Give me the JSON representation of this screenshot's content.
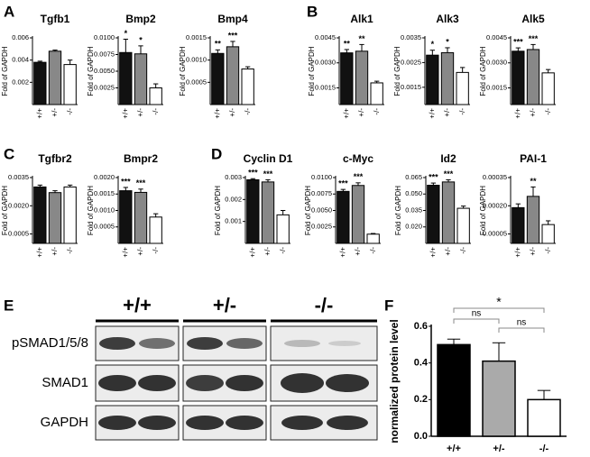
{
  "panel_labels": [
    "A",
    "B",
    "C",
    "D",
    "E",
    "F"
  ],
  "blot": {
    "genotypes": [
      "+/+",
      "+/-",
      "-/-"
    ],
    "rows": [
      "pSMAD1/5/8",
      "SMAD1",
      "GAPDH"
    ]
  },
  "chart_data": [
    {
      "type": "bar",
      "title": "Tgfb1",
      "y_label": "Fold of GAPDH",
      "categories": [
        "+/+",
        "+/-",
        "-/-"
      ],
      "colors": [
        "#111111",
        "#888888",
        "#ffffff"
      ],
      "values": [
        0.0038,
        0.0048,
        0.0036
      ],
      "errors": [
        0.0001,
        0.0001,
        0.0004
      ],
      "significance": [
        null,
        null,
        null
      ],
      "ylim": [
        0,
        0.006
      ],
      "yticks": [
        0.002,
        0.004,
        0.006
      ]
    },
    {
      "type": "bar",
      "title": "Bmp2",
      "y_label": "Fold of GAPDH",
      "categories": [
        "+/+",
        "+/-",
        "-/-"
      ],
      "colors": [
        "#111111",
        "#888888",
        "#ffffff"
      ],
      "values": [
        0.0078,
        0.0076,
        0.0025
      ],
      "errors": [
        0.002,
        0.0012,
        0.0006
      ],
      "significance": [
        "*",
        "*",
        null
      ],
      "ylim": [
        0,
        0.01
      ],
      "yticks": [
        0.0025,
        {
          "value": 0.005,
          "label": "0.0050"
        },
        0.0075,
        {
          "value": 0.01,
          "label": "0.0100"
        }
      ]
    },
    {
      "type": "bar",
      "title": "Bmp4",
      "y_label": "Fold of GAPDH",
      "categories": [
        "+/+",
        "+/-",
        "-/-"
      ],
      "colors": [
        "#111111",
        "#888888",
        "#ffffff"
      ],
      "values": [
        0.00115,
        0.0013,
        0.0008
      ],
      "errors": [
        8e-05,
        0.00012,
        5e-05
      ],
      "significance": [
        "**",
        "***",
        null
      ],
      "ylim": [
        0,
        0.0015
      ],
      "yticks": [
        0.0005,
        {
          "value": 0.001,
          "label": "0.0010"
        },
        0.0015
      ]
    },
    {
      "type": "bar",
      "title": "Alk1",
      "y_label": "Fold of GAPDH",
      "categories": [
        "+/+",
        "+/-",
        "-/-"
      ],
      "colors": [
        "#111111",
        "#888888",
        "#ffffff"
      ],
      "values": [
        0.0036,
        0.0037,
        0.0018
      ],
      "errors": [
        0.0002,
        0.0004,
        0.0001
      ],
      "significance": [
        "**",
        "**",
        null
      ],
      "ylim": [
        0.0005,
        0.0045
      ],
      "yticks": [
        0.0015,
        {
          "value": 0.003,
          "label": "0.0030"
        },
        0.0045
      ]
    },
    {
      "type": "bar",
      "title": "Alk3",
      "y_label": "Fold of GAPDH",
      "categories": [
        "+/+",
        "+/-",
        "-/-"
      ],
      "colors": [
        "#111111",
        "#888888",
        "#ffffff"
      ],
      "values": [
        0.0028,
        0.0029,
        0.0021
      ],
      "errors": [
        0.0002,
        0.0002,
        0.0002
      ],
      "significance": [
        "*",
        "*",
        null
      ],
      "ylim": [
        0.0008,
        0.0035
      ],
      "yticks": [
        0.0015,
        0.0025,
        0.0035
      ]
    },
    {
      "type": "bar",
      "title": "Alk5",
      "y_label": "Fold of GAPDH",
      "categories": [
        "+/+",
        "+/-",
        "-/-"
      ],
      "colors": [
        "#111111",
        "#888888",
        "#ffffff"
      ],
      "values": [
        0.0037,
        0.0038,
        0.0024
      ],
      "errors": [
        0.0002,
        0.0003,
        0.0002
      ],
      "significance": [
        "***",
        "***",
        null
      ],
      "ylim": [
        0.0005,
        0.0045
      ],
      "yticks": [
        0.0015,
        {
          "value": 0.003,
          "label": "0.0030"
        },
        0.0045
      ]
    },
    {
      "type": "bar",
      "title": "Tgfbr2",
      "y_label": "Fold of GAPDH",
      "categories": [
        "+/+",
        "+/-",
        "-/-"
      ],
      "colors": [
        "#111111",
        "#888888",
        "#ffffff"
      ],
      "values": [
        0.003,
        0.0027,
        0.003
      ],
      "errors": [
        0.0001,
        0.0001,
        0.0001
      ],
      "significance": [
        null,
        null,
        null
      ],
      "ylim": [
        0,
        0.0035
      ],
      "yticks": [
        0.0005,
        {
          "value": 0.002,
          "label": "0.0020"
        },
        0.0035
      ]
    },
    {
      "type": "bar",
      "title": "Bmpr2",
      "y_label": "Fold of GAPDH",
      "categories": [
        "+/+",
        "+/-",
        "-/-"
      ],
      "colors": [
        "#111111",
        "#888888",
        "#ffffff"
      ],
      "values": [
        0.0016,
        0.00155,
        0.0008
      ],
      "errors": [
        0.0001,
        0.0001,
        0.0001
      ],
      "significance": [
        "***",
        "***",
        null
      ],
      "ylim": [
        0,
        0.002
      ],
      "yticks": [
        0.0005,
        {
          "value": 0.001,
          "label": "0.0010"
        },
        0.0015,
        {
          "value": 0.002,
          "label": "0.0020"
        }
      ]
    },
    {
      "type": "bar",
      "title": "Cyclin D1",
      "y_label": "Fold of GAPDH",
      "categories": [
        "+/+",
        "+/-",
        "-/-"
      ],
      "colors": [
        "#111111",
        "#888888",
        "#ffffff"
      ],
      "values": [
        0.0029,
        0.0028,
        0.0013
      ],
      "errors": [
        5e-05,
        0.0001,
        0.0002
      ],
      "significance": [
        "***",
        "***",
        null
      ],
      "ylim": [
        0,
        0.003
      ],
      "yticks": [
        0.001,
        0.002,
        0.003
      ]
    },
    {
      "type": "bar",
      "title": "c-Myc",
      "y_label": "Fold of GAPDH",
      "categories": [
        "+/+",
        "+/-",
        "-/-"
      ],
      "colors": [
        "#111111",
        "#888888",
        "#ffffff"
      ],
      "values": [
        0.0079,
        0.0088,
        0.0014
      ],
      "errors": [
        0.0003,
        0.0004,
        0.0001
      ],
      "significance": [
        "***",
        "***",
        null
      ],
      "ylim": [
        0,
        0.01
      ],
      "yticks": [
        0.0025,
        {
          "value": 0.005,
          "label": "0.0050"
        },
        0.0075,
        {
          "value": 0.01,
          "label": "0.0100"
        }
      ]
    },
    {
      "type": "bar",
      "title": "Id2",
      "y_label": "Fold of GAPDH",
      "categories": [
        "+/+",
        "+/-",
        "-/-"
      ],
      "colors": [
        "#111111",
        "#888888",
        "#ffffff"
      ],
      "values": [
        0.058,
        0.061,
        0.037
      ],
      "errors": [
        0.002,
        0.002,
        0.002
      ],
      "significance": [
        "***",
        "***",
        null
      ],
      "ylim": [
        0.005,
        0.065
      ],
      "yticks": [
        {
          "value": 0.02,
          "label": "0.020"
        },
        0.035,
        {
          "value": 0.05,
          "label": "0.050"
        },
        0.065
      ]
    },
    {
      "type": "bar",
      "title": "PAI-1",
      "y_label": "Fold of GAPDH",
      "categories": [
        "+/+",
        "+/-",
        "-/-"
      ],
      "colors": [
        "#111111",
        "#888888",
        "#ffffff"
      ],
      "values": [
        0.00019,
        0.00025,
        0.0001
      ],
      "errors": [
        2e-05,
        5e-05,
        2e-05
      ],
      "significance": [
        null,
        "**",
        null
      ],
      "ylim": [
        0,
        0.00035
      ],
      "yticks": [
        5e-05,
        {
          "value": 0.0002,
          "label": "0.00020"
        },
        0.00035
      ]
    },
    {
      "type": "bar",
      "y_label": "normalized protein level",
      "categories": [
        "+/+",
        "+/-",
        "-/-"
      ],
      "colors": [
        "#000000",
        "#aaaaaa",
        "#ffffff"
      ],
      "values": [
        0.5,
        0.41,
        0.2
      ],
      "errors": [
        0.03,
        0.1,
        0.05
      ],
      "comparison_labels": [
        "ns",
        "ns",
        "*"
      ],
      "ylim": [
        0,
        0.6
      ],
      "yticks": [
        {
          "value": 0,
          "label": "0.0"
        },
        0.2,
        0.4,
        0.6
      ]
    }
  ]
}
